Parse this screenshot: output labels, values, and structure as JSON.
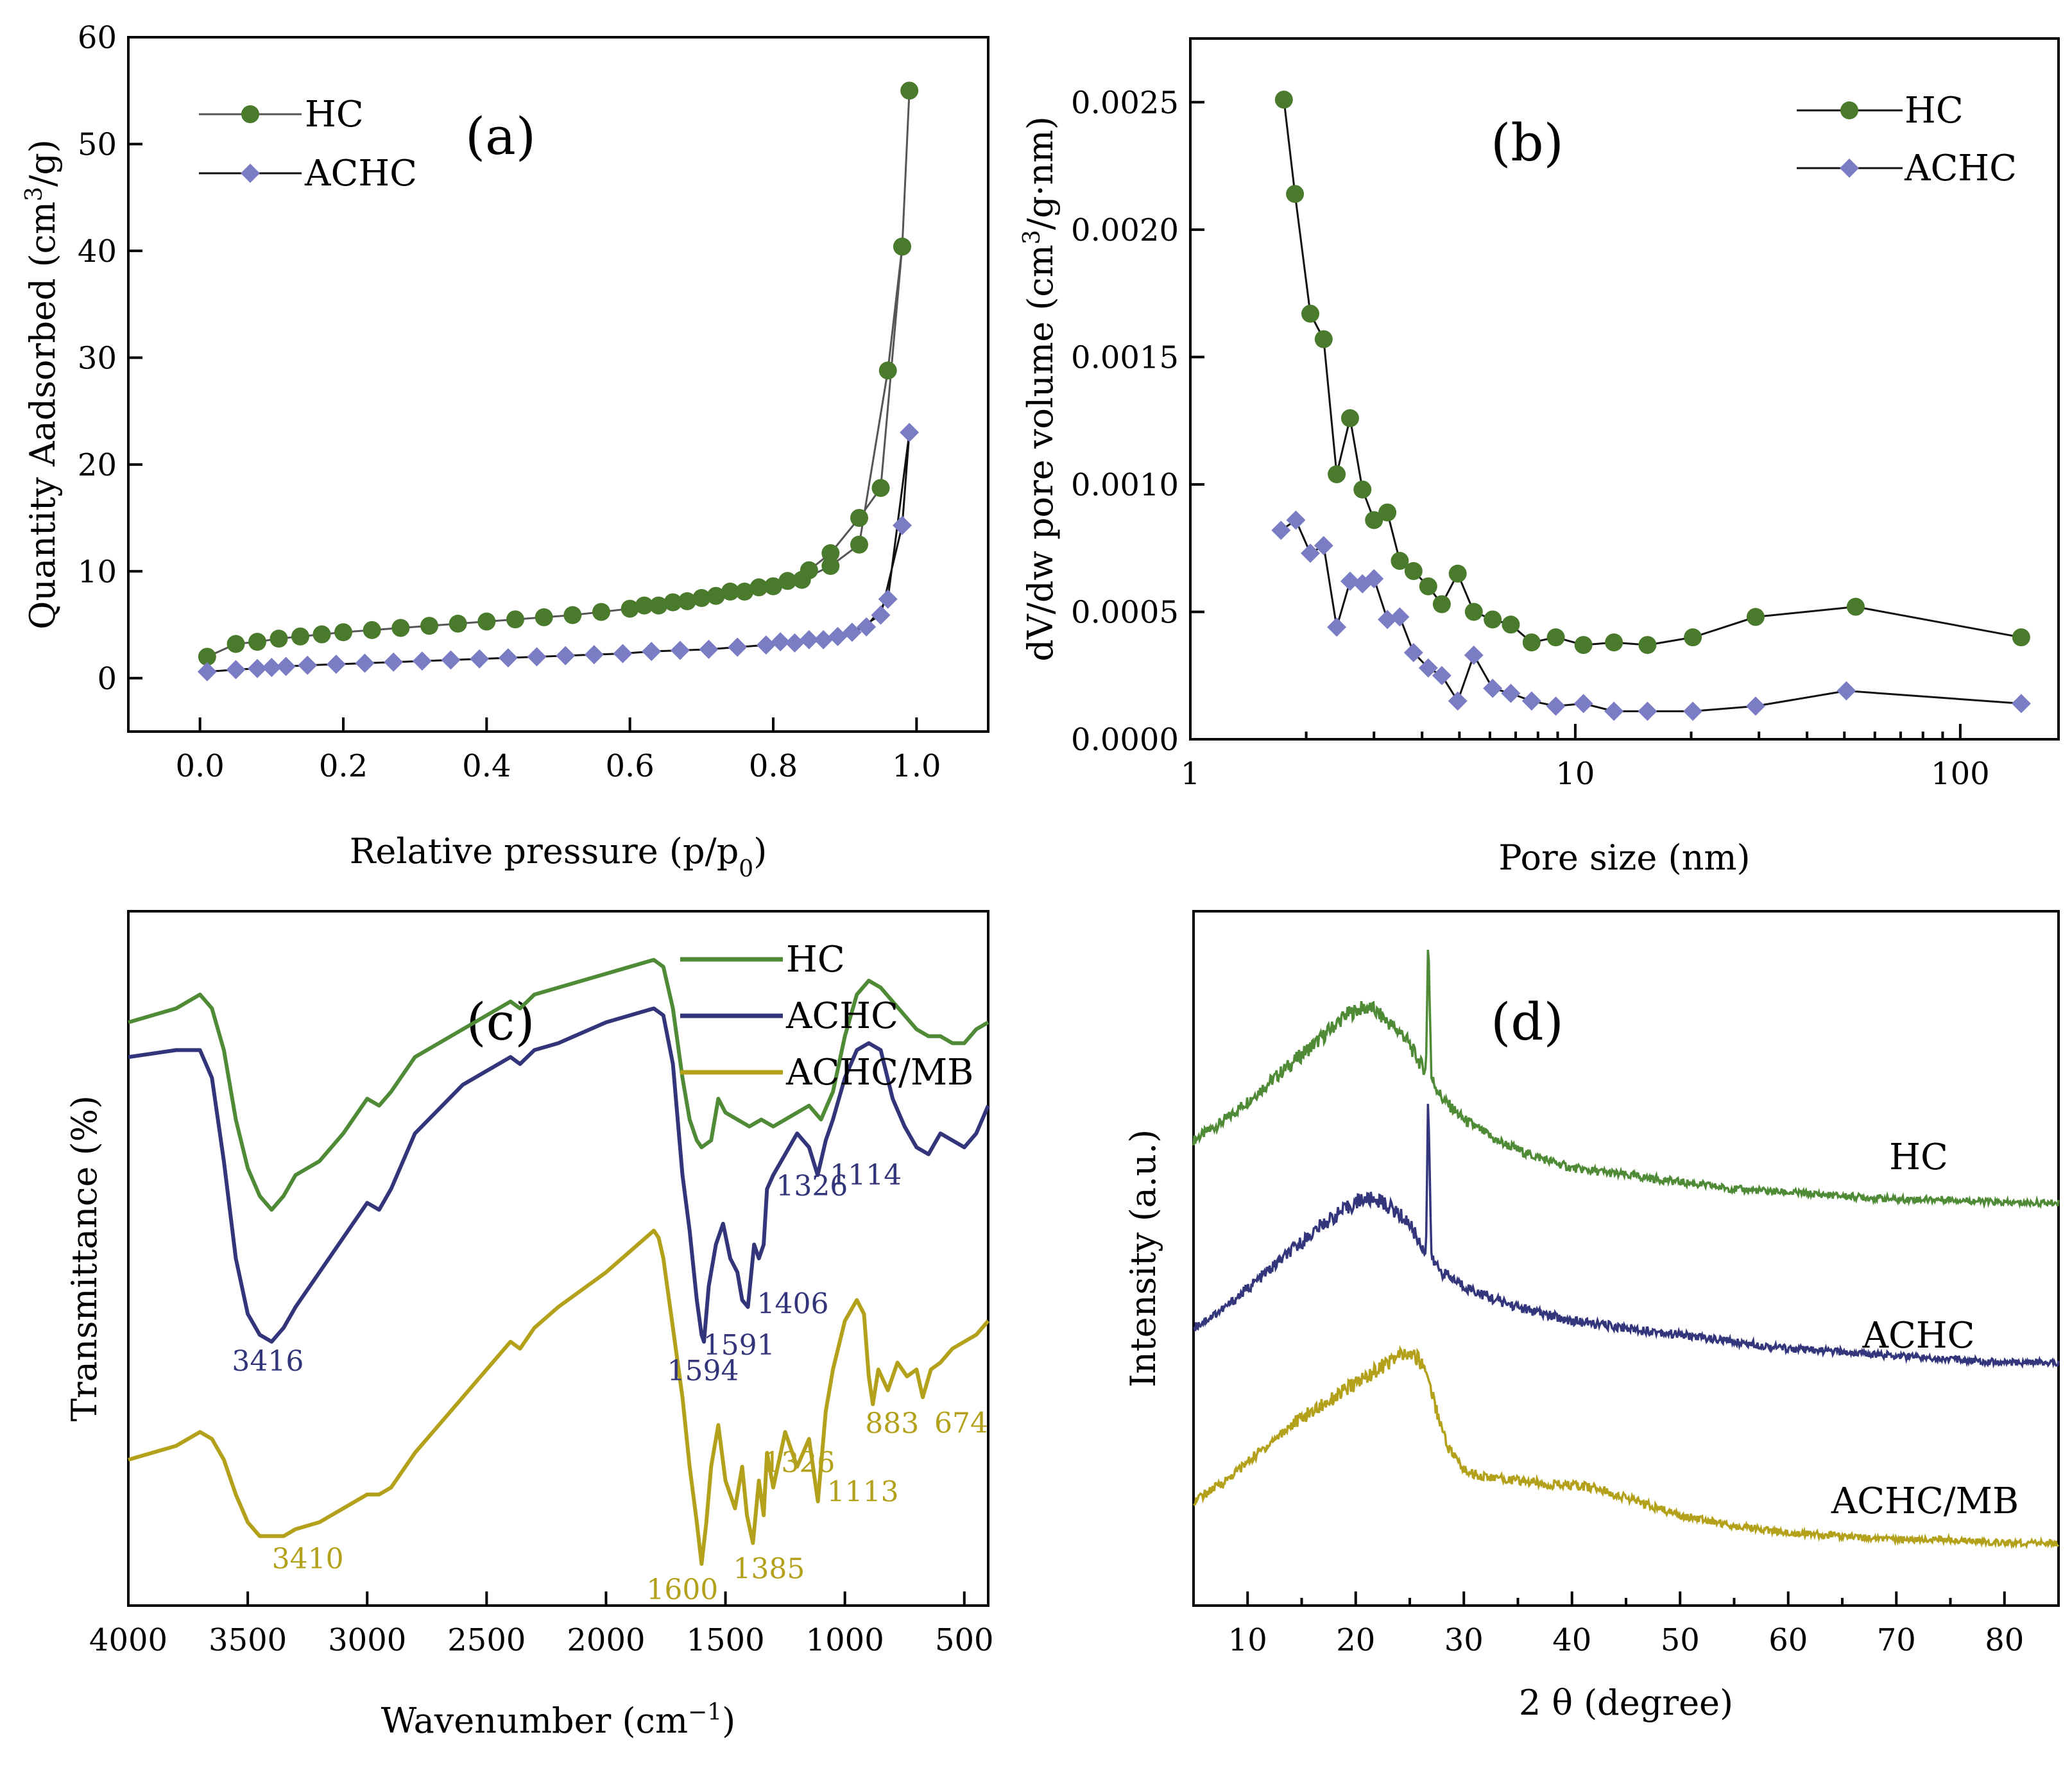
{
  "colors": {
    "hc_marker": "#4a7a2c",
    "achc_marker": "#7b7dc4",
    "hc_ftir": "#4f8a37",
    "achc_ftir": "#33357a",
    "achcmb_ftir": "#b3a11c",
    "hc_xrd": "#4f8a37",
    "achc_xrd": "#34367c",
    "achcmb_xrd": "#b3a11c"
  },
  "chart_data": [
    {
      "id": "a",
      "type": "scatter",
      "panel_label": "(a)",
      "xlabel": "Relative pressure (p/p0)",
      "ylabel": "Quantity Aadsorbed (cm3/g)",
      "xlim": [
        -0.1,
        1.1
      ],
      "ylim": [
        -5,
        60
      ],
      "xticks": [
        "0.0",
        "0.2",
        "0.4",
        "0.6",
        "0.8",
        "1.0"
      ],
      "yticks": [
        "0",
        "10",
        "20",
        "30",
        "40",
        "50",
        "60"
      ],
      "legend": [
        "HC",
        "ACHC"
      ],
      "series": [
        {
          "name": "HC",
          "x": [
            0.01,
            0.05,
            0.08,
            0.11,
            0.14,
            0.17,
            0.2,
            0.24,
            0.28,
            0.32,
            0.36,
            0.4,
            0.44,
            0.48,
            0.52,
            0.56,
            0.6,
            0.64,
            0.68,
            0.72,
            0.76,
            0.8,
            0.84,
            0.88,
            0.92,
            0.96,
            0.98,
            0.99,
            0.98,
            0.95,
            0.92,
            0.88,
            0.85,
            0.82,
            0.78,
            0.74,
            0.7,
            0.66,
            0.62
          ],
          "y": [
            2.0,
            3.2,
            3.4,
            3.7,
            3.9,
            4.1,
            4.3,
            4.5,
            4.7,
            4.9,
            5.1,
            5.3,
            5.5,
            5.7,
            5.9,
            6.2,
            6.5,
            6.8,
            7.2,
            7.7,
            8.1,
            8.6,
            9.2,
            10.5,
            12.5,
            28.8,
            40.4,
            55.0,
            40.4,
            17.8,
            15.0,
            11.7,
            10.1,
            9.1,
            8.5,
            8.1,
            7.5,
            7.1,
            6.8
          ]
        },
        {
          "name": "ACHC",
          "x": [
            0.01,
            0.05,
            0.08,
            0.1,
            0.12,
            0.15,
            0.19,
            0.23,
            0.27,
            0.31,
            0.35,
            0.39,
            0.43,
            0.47,
            0.51,
            0.55,
            0.59,
            0.63,
            0.67,
            0.71,
            0.75,
            0.79,
            0.83,
            0.87,
            0.91,
            0.95,
            0.98,
            0.99,
            0.96,
            0.93,
            0.89,
            0.85,
            0.81
          ],
          "y": [
            0.6,
            0.8,
            0.9,
            1.0,
            1.1,
            1.2,
            1.3,
            1.4,
            1.5,
            1.6,
            1.7,
            1.8,
            1.9,
            2.0,
            2.1,
            2.2,
            2.3,
            2.5,
            2.6,
            2.7,
            2.9,
            3.1,
            3.3,
            3.6,
            4.3,
            5.9,
            14.3,
            23.0,
            7.4,
            4.8,
            3.9,
            3.6,
            3.4
          ]
        }
      ]
    },
    {
      "id": "b",
      "type": "line",
      "panel_label": "(b)",
      "xscale": "log",
      "xlabel": "Pore size (nm)",
      "ylabel": "dV/dw pore volume (cm3/g·nm)",
      "xlim": [
        1,
        180
      ],
      "ylim": [
        0,
        0.00275
      ],
      "xticks": [
        "1",
        "10",
        "100"
      ],
      "yticks": [
        "0.0000",
        "0.0005",
        "0.0010",
        "0.0015",
        "0.0020",
        "0.0025"
      ],
      "legend": [
        "HC",
        "ACHC"
      ],
      "series": [
        {
          "name": "HC",
          "x": [
            1.75,
            1.87,
            2.05,
            2.22,
            2.4,
            2.6,
            2.8,
            3.0,
            3.25,
            3.5,
            3.8,
            4.15,
            4.5,
            4.95,
            5.45,
            6.1,
            6.8,
            7.7,
            8.9,
            10.5,
            12.6,
            15.4,
            20.2,
            29.4,
            53.5,
            144
          ]
        },
        {
          "name": "ACHC",
          "x": [
            1.72,
            1.88,
            2.05,
            2.22,
            2.4,
            2.6,
            2.8,
            3.0,
            3.25,
            3.5,
            3.8,
            4.15,
            4.5,
            4.95,
            5.45,
            6.1,
            6.8,
            7.7,
            8.9,
            10.5,
            12.6,
            15.4,
            20.2,
            29.4,
            50.6,
            144
          ]
        }
      ],
      "hc_y": [
        0.00251,
        0.00214,
        0.00167,
        0.00157,
        0.00104,
        0.00126,
        0.00098,
        0.00086,
        0.00089,
        0.0007,
        0.00066,
        0.0006,
        0.00053,
        0.00065,
        0.0005,
        0.00047,
        0.00045,
        0.00038,
        0.0004,
        0.00037,
        0.00038,
        0.00037,
        0.0004,
        0.00048,
        0.00052,
        0.0004
      ],
      "achc_y": [
        0.00082,
        0.00086,
        0.00073,
        0.00076,
        0.00044,
        0.00062,
        0.00061,
        0.00063,
        0.00047,
        0.00048,
        0.00034,
        0.00028,
        0.00025,
        0.00015,
        0.00033,
        0.0002,
        0.00018,
        0.00015,
        0.00013,
        0.00014,
        0.00011,
        0.00011,
        0.00011,
        0.00013,
        0.00019,
        0.00014
      ]
    },
    {
      "id": "c",
      "type": "line",
      "panel_label": "(c)",
      "xlabel": "Wavenumber (cm−1)",
      "ylabel": "Transmittance (%)",
      "xlim": [
        4000,
        400
      ],
      "ylim": [
        0,
        100
      ],
      "xticks": [
        "4000",
        "3500",
        "3000",
        "2500",
        "2000",
        "1500",
        "1000",
        "500"
      ],
      "legend": [
        "HC",
        "ACHC",
        "ACHC/MB"
      ],
      "series": [
        {
          "name": "HC",
          "x": [
            4000,
            3800,
            3700,
            3650,
            3600,
            3550,
            3500,
            3450,
            3400,
            3350,
            3300,
            3200,
            3100,
            3000,
            2950,
            2900,
            2800,
            2600,
            2400,
            2360,
            2300,
            2200,
            2000,
            1900,
            1800,
            1760,
            1720,
            1680,
            1650,
            1620,
            1600,
            1560,
            1530,
            1500,
            1450,
            1400,
            1350,
            1300,
            1250,
            1200,
            1150,
            1100,
            1050,
            1000,
            950,
            900,
            850,
            800,
            750,
            700,
            650,
            600,
            550,
            500,
            450,
            400
          ],
          "y": [
            84,
            86,
            88,
            86,
            80,
            70,
            63,
            59,
            57,
            59,
            62,
            64,
            68,
            73,
            72,
            74,
            79,
            83,
            87,
            86,
            88,
            89,
            91,
            92,
            93,
            92,
            86,
            76,
            70,
            67,
            66,
            67,
            73,
            71,
            70,
            69,
            70,
            69,
            70,
            71,
            72,
            70,
            74,
            82,
            88,
            90,
            89,
            87,
            85,
            83,
            82,
            82,
            81,
            81,
            83,
            84
          ]
        },
        {
          "name": "ACHC",
          "x": [
            4000,
            3800,
            3700,
            3650,
            3600,
            3550,
            3500,
            3450,
            3400,
            3350,
            3300,
            3200,
            3100,
            3000,
            2950,
            2900,
            2800,
            2600,
            2400,
            2360,
            2300,
            2200,
            2000,
            1900,
            1800,
            1760,
            1720,
            1680,
            1650,
            1620,
            1600,
            1590,
            1570,
            1540,
            1510,
            1480,
            1450,
            1430,
            1406,
            1380,
            1360,
            1340,
            1326,
            1300,
            1250,
            1200,
            1150,
            1114,
            1080,
            1050,
            1000,
            950,
            900,
            850,
            800,
            750,
            700,
            650,
            600,
            550,
            500,
            450,
            400
          ],
          "y": [
            79,
            80,
            80,
            76,
            64,
            50,
            42,
            39,
            38,
            40,
            43,
            48,
            53,
            58,
            57,
            60,
            68,
            75,
            79,
            78,
            80,
            81,
            84,
            85,
            86,
            85,
            78,
            62,
            54,
            44,
            39,
            38,
            46,
            52,
            55,
            50,
            48,
            44,
            43,
            52,
            50,
            52,
            60,
            62,
            65,
            68,
            66,
            62,
            67,
            70,
            76,
            80,
            81,
            80,
            73,
            69,
            66,
            65,
            68,
            67,
            66,
            68,
            72
          ]
        },
        {
          "name": "ACHC/MB",
          "x": [
            4000,
            3800,
            3700,
            3650,
            3600,
            3550,
            3500,
            3450,
            3410,
            3350,
            3300,
            3200,
            3100,
            3000,
            2950,
            2900,
            2800,
            2600,
            2400,
            2360,
            2300,
            2200,
            2000,
            1900,
            1800,
            1780,
            1760,
            1720,
            1680,
            1650,
            1620,
            1600,
            1580,
            1560,
            1530,
            1500,
            1460,
            1430,
            1410,
            1385,
            1360,
            1340,
            1326,
            1300,
            1250,
            1200,
            1150,
            1113,
            1080,
            1050,
            1000,
            950,
            920,
            900,
            883,
            860,
            820,
            780,
            740,
            700,
            674,
            640,
            600,
            550,
            500,
            450,
            400
          ],
          "y": [
            21,
            23,
            25,
            24,
            21,
            16,
            12,
            10,
            10,
            10,
            11,
            12,
            14,
            16,
            16,
            17,
            22,
            30,
            38,
            37,
            40,
            43,
            48,
            51,
            54,
            53,
            50,
            40,
            30,
            20,
            12,
            6,
            12,
            20,
            26,
            18,
            14,
            20,
            13,
            9,
            18,
            13,
            22,
            17,
            25,
            20,
            24,
            15,
            28,
            34,
            41,
            44,
            42,
            33,
            29,
            34,
            31,
            35,
            33,
            34,
            30,
            34,
            35,
            37,
            38,
            39,
            41
          ]
        }
      ],
      "annotations": [
        {
          "text": "3416",
          "series": "ACHC",
          "x": 3416,
          "y": 38
        },
        {
          "text": "1594",
          "series": "ACHC",
          "x": 1594,
          "y": 38
        },
        {
          "text": "1591",
          "series": "ACHC",
          "x": 1591,
          "y": 38
        },
        {
          "text": "1406",
          "series": "ACHC",
          "x": 1406,
          "y": 43
        },
        {
          "text": "1326",
          "series": "ACHC",
          "x": 1326,
          "y": 60
        },
        {
          "text": "1114",
          "series": "ACHC",
          "x": 1114,
          "y": 62
        },
        {
          "text": "3410",
          "series": "ACHC/MB",
          "x": 3410,
          "y": 10
        },
        {
          "text": "1600",
          "series": "ACHC/MB",
          "x": 1600,
          "y": 6
        },
        {
          "text": "1385",
          "series": "ACHC/MB",
          "x": 1385,
          "y": 9
        },
        {
          "text": "1326",
          "series": "ACHC/MB",
          "x": 1326,
          "y": 22
        },
        {
          "text": "1113",
          "series": "ACHC/MB",
          "x": 1113,
          "y": 15
        },
        {
          "text": "883",
          "series": "ACHC/MB",
          "x": 883,
          "y": 29
        },
        {
          "text": "674",
          "series": "ACHC/MB",
          "x": 674,
          "y": 30
        }
      ]
    },
    {
      "id": "d",
      "type": "line",
      "panel_label": "(d)",
      "xlabel": "2 θ (degree)",
      "ylabel": "Intensity (a.u.)",
      "xlim": [
        5,
        85
      ],
      "ylim": [
        0,
        100
      ],
      "xticks": [
        "10",
        "20",
        "30",
        "40",
        "50",
        "60",
        "70",
        "80"
      ],
      "series": [
        {
          "name": "HC",
          "x": [
            5,
            8,
            11,
            14,
            17,
            19,
            20.5,
            21.5,
            23,
            24.5,
            26,
            26.5,
            26.7,
            27,
            28,
            30,
            33,
            36,
            40,
            45,
            50,
            55,
            60,
            65,
            70,
            75,
            80,
            85
          ],
          "y": [
            67,
            70,
            74,
            78,
            82,
            85,
            86,
            86,
            84,
            82,
            78,
            77,
            97,
            76,
            73,
            70,
            67,
            65,
            63,
            62,
            61,
            60,
            59.5,
            59,
            58.5,
            58.5,
            58,
            58
          ],
          "peak_labels": [
            {
              "text": "",
              "x": 20.8,
              "y": 90
            }
          ]
        },
        {
          "name": "ACHC",
          "x": [
            5,
            8,
            11,
            14,
            17,
            19,
            20.5,
            22,
            23.5,
            25,
            26,
            26.5,
            26.7,
            27,
            28,
            30,
            33,
            36,
            40,
            45,
            50,
            55,
            60,
            65,
            70,
            75,
            80,
            85
          ],
          "y": [
            40,
            43,
            47,
            51,
            55,
            57,
            58.5,
            58.5,
            57,
            55,
            52,
            51,
            74,
            50,
            48,
            46,
            44,
            42.5,
            41,
            40,
            39,
            38,
            37,
            36.5,
            36,
            35.5,
            35,
            35
          ]
        },
        {
          "name": "ACHC/MB",
          "x": [
            5,
            8,
            11,
            14,
            17,
            20,
            22,
            24,
            25.5,
            26.5,
            27.5,
            28.5,
            30,
            32,
            35,
            38,
            42,
            46,
            50,
            55,
            60,
            65,
            70,
            75,
            80,
            85
          ],
          "y": [
            15,
            18,
            22,
            26,
            29,
            32,
            34,
            36,
            36,
            34,
            28,
            23,
            19.5,
            18.5,
            18,
            17.5,
            17,
            15,
            13,
            11.5,
            10.5,
            10,
            9.5,
            9.5,
            9,
            9
          ]
        }
      ],
      "series_labels": [
        "HC",
        "ACHC",
        "ACHC/MB"
      ]
    }
  ]
}
